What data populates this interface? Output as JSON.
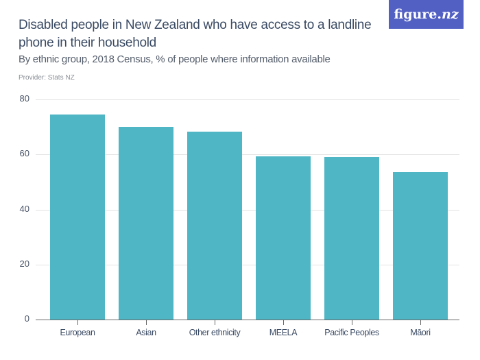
{
  "header": {
    "title": "Disabled people in New Zealand who have access to a landline phone in their household",
    "subtitle": "By ethnic group, 2018 Census, % of people where information available",
    "provider": "Provider: Stats NZ",
    "logo": {
      "text_main": "figure.",
      "text_italic": "nz",
      "bg_color": "#5260c4"
    }
  },
  "colors": {
    "bar": "#4fb6c5",
    "gridline": "#e3e3e3",
    "axis": "#666666",
    "title": "#3a4a63"
  },
  "chart_data": {
    "type": "bar",
    "title": "Disabled people in New Zealand who have access to a landline phone in their household",
    "subtitle": "By ethnic group, 2018 Census, % of people where information available",
    "source": "Provider: Stats NZ",
    "categories": [
      "European",
      "Asian",
      "Other ethnicity",
      "MEELA",
      "Pacific Peoples",
      "Māori"
    ],
    "values": [
      74.4,
      70.1,
      68.4,
      59.2,
      59.0,
      53.7
    ],
    "xlabel": "",
    "ylabel": "",
    "ylim": [
      0,
      80
    ],
    "yticks": [
      "0",
      "20",
      "40",
      "60",
      "80"
    ],
    "grid": true,
    "legend": null
  }
}
